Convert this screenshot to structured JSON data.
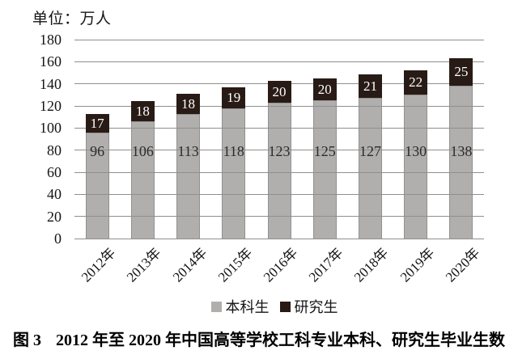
{
  "chart_data": {
    "type": "bar",
    "stacked": true,
    "unit_label": "单位：万人",
    "categories": [
      "2012年",
      "2013年",
      "2014年",
      "2015年",
      "2016年",
      "2017年",
      "2018年",
      "2019年",
      "2020年"
    ],
    "series": [
      {
        "name": "本科生",
        "color": "#b1afae",
        "label_color": "#2b2b2b",
        "values": [
          96,
          106,
          113,
          118,
          123,
          125,
          127,
          130,
          138
        ]
      },
      {
        "name": "研究生",
        "color": "#281b16",
        "label_color": "#ffffff",
        "values": [
          17,
          18,
          18,
          19,
          20,
          20,
          21,
          22,
          25
        ]
      }
    ],
    "ylim": [
      0,
      180
    ],
    "yticks": [
      0,
      20,
      40,
      60,
      80,
      100,
      120,
      140,
      160,
      180
    ],
    "grid": true,
    "gridline_color": "#8f8f8f",
    "legend_position": "bottom"
  },
  "caption": {
    "prefix": "图 3",
    "text": "2012 年至 2020 年中国高等学校工科专业本科、研究生毕业生数"
  }
}
